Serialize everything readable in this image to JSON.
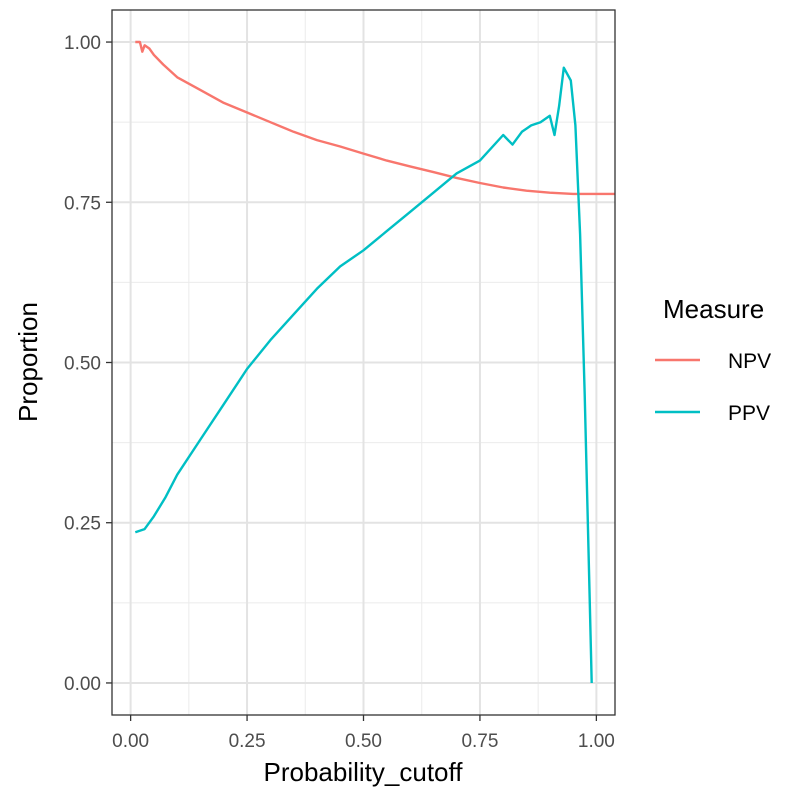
{
  "chart_data": {
    "type": "line",
    "xlabel": "Probability_cutoff",
    "ylabel": "Proportion",
    "xlim": [
      -0.04,
      1.04
    ],
    "ylim": [
      -0.05,
      1.05
    ],
    "x_ticks": [
      0.0,
      0.25,
      0.5,
      0.75,
      1.0
    ],
    "x_tick_labels": [
      "0.00",
      "0.25",
      "0.50",
      "0.75",
      "1.00"
    ],
    "y_ticks": [
      0.0,
      0.25,
      0.5,
      0.75,
      1.0
    ],
    "y_tick_labels": [
      "0.00",
      "0.25",
      "0.50",
      "0.75",
      "1.00"
    ],
    "grid": true,
    "legend": {
      "title": "Measure",
      "position": "right"
    },
    "series": [
      {
        "name": "NPV",
        "color": "#F8766D",
        "x": [
          0.01,
          0.02,
          0.025,
          0.03,
          0.04,
          0.05,
          0.07,
          0.1,
          0.15,
          0.2,
          0.25,
          0.3,
          0.35,
          0.4,
          0.45,
          0.5,
          0.55,
          0.6,
          0.65,
          0.7,
          0.75,
          0.8,
          0.85,
          0.9,
          0.95,
          1.0,
          1.04
        ],
        "y": [
          1.0,
          1.0,
          0.985,
          0.995,
          0.99,
          0.98,
          0.965,
          0.945,
          0.925,
          0.905,
          0.89,
          0.875,
          0.86,
          0.847,
          0.837,
          0.826,
          0.815,
          0.806,
          0.797,
          0.788,
          0.78,
          0.773,
          0.768,
          0.765,
          0.763,
          0.763,
          0.763
        ]
      },
      {
        "name": "PPV",
        "color": "#00BFC4",
        "x": [
          0.01,
          0.03,
          0.05,
          0.075,
          0.1,
          0.15,
          0.2,
          0.25,
          0.3,
          0.35,
          0.4,
          0.45,
          0.5,
          0.55,
          0.6,
          0.65,
          0.7,
          0.75,
          0.8,
          0.82,
          0.84,
          0.86,
          0.88,
          0.9,
          0.91,
          0.92,
          0.93,
          0.945,
          0.955,
          0.965,
          0.975,
          0.985,
          0.99
        ],
        "y": [
          0.235,
          0.24,
          0.26,
          0.29,
          0.325,
          0.38,
          0.435,
          0.49,
          0.535,
          0.575,
          0.615,
          0.65,
          0.675,
          0.705,
          0.735,
          0.765,
          0.795,
          0.815,
          0.855,
          0.84,
          0.86,
          0.87,
          0.875,
          0.885,
          0.855,
          0.9,
          0.96,
          0.94,
          0.87,
          0.7,
          0.45,
          0.15,
          0.0
        ]
      }
    ]
  }
}
